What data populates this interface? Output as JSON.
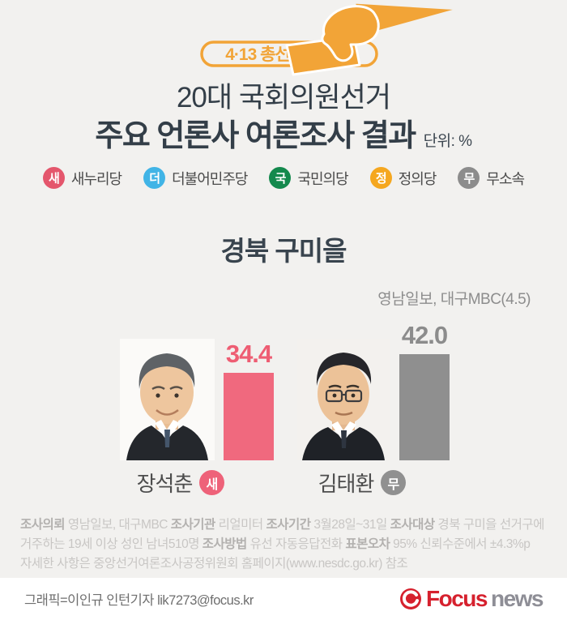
{
  "header": {
    "badge_label": "4·13 총선",
    "title_line1": "20대 국회의원선거",
    "title_line2": "주요 언론사 여론조사 결과",
    "unit_label": "단위: %",
    "accent_orange": "#f2a437"
  },
  "legend": {
    "items": [
      {
        "letter": "새",
        "label": "새누리당",
        "color": "#e4566c"
      },
      {
        "letter": "더",
        "label": "더불어민주당",
        "color": "#41b4e6"
      },
      {
        "letter": "국",
        "label": "국민의당",
        "color": "#14894d"
      },
      {
        "letter": "정",
        "label": "정의당",
        "color": "#f5a71f"
      },
      {
        "letter": "무",
        "label": "무소속",
        "color": "#8c8c8c"
      }
    ]
  },
  "chart_data": {
    "type": "bar",
    "title": "경북 구미을",
    "source": "영남일보, 대구MBC(4.5)",
    "unit": "%",
    "ylim": [
      0,
      50
    ],
    "categories": [
      "장석춘",
      "김태환"
    ],
    "values": [
      34.4,
      42.0
    ],
    "candidates": [
      {
        "name": "장석춘",
        "party_badge": "새",
        "party": "새누리당",
        "value": 34.4,
        "value_label": "34.4",
        "bar_color": "#f0697e",
        "value_color": "#ee5d73",
        "badge_color": "#ee6279"
      },
      {
        "name": "김태환",
        "party_badge": "무",
        "party": "무소속",
        "value": 42.0,
        "value_label": "42.0",
        "bar_color": "#8f8f8f",
        "value_color": "#8c8c8c",
        "badge_color": "#909090"
      }
    ]
  },
  "footer": {
    "lines": [
      [
        {
          "b": "조사의뢰"
        },
        {
          "t": " 영남일보,  대구MBC "
        },
        {
          "b": "조사기관"
        },
        {
          "t": " 리얼미터 "
        },
        {
          "b": "조사기간"
        },
        {
          "t": " 3월28일~31일 "
        },
        {
          "b": "조사대상"
        },
        {
          "t": " 경북 구미을 선거구에"
        }
      ],
      [
        {
          "t": "거주하는 19세 이상 성인 남녀510명 "
        },
        {
          "b": "조사방법"
        },
        {
          "t": " 유선 자동응답전화 "
        },
        {
          "b": "표본오차"
        },
        {
          "t": " 95% 신뢰수준에서 ±4.3%p"
        }
      ],
      [
        {
          "t": "자세한 사항은 중앙선거여론조사공정위원회 홈페이지(www.nesdc.go.kr) 참조"
        }
      ]
    ]
  },
  "bottom_bar": {
    "credit": "그래픽=이인규 인턴기자 lik7273@focus.kr",
    "logo_focus": "Focus",
    "logo_news": "news",
    "logo_red": "#d6212e",
    "logo_gray": "#8e8e96"
  }
}
